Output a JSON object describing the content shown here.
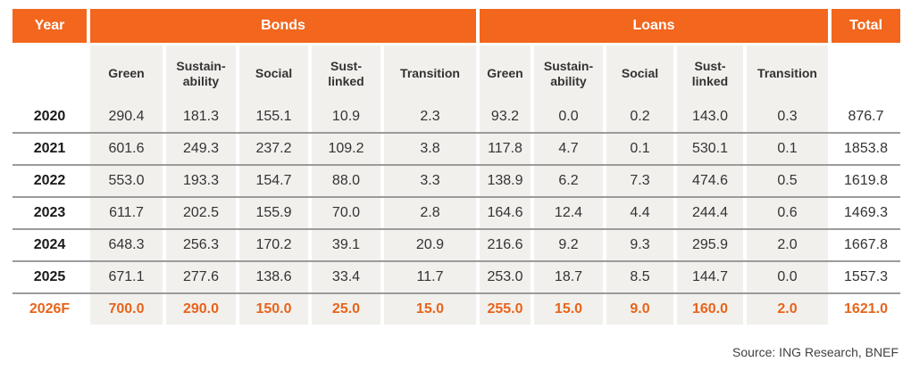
{
  "table": {
    "year_header": "Year",
    "groups": [
      {
        "label": "Bonds"
      },
      {
        "label": "Loans"
      }
    ],
    "total_header": "Total",
    "subheaders": [
      "Green",
      "Sustain-\nability",
      "Social",
      "Sust-\nlinked",
      "Transition",
      "Green",
      "Sustain-\nability",
      "Social",
      "Sust-\nlinked",
      "Transition"
    ],
    "rows": [
      {
        "year": "2020",
        "values": [
          "290.4",
          "181.3",
          "155.1",
          "10.9",
          "2.3",
          "93.2",
          "0.0",
          "0.2",
          "143.0",
          "0.3"
        ],
        "total": "876.7",
        "forecast": false
      },
      {
        "year": "2021",
        "values": [
          "601.6",
          "249.3",
          "237.2",
          "109.2",
          "3.8",
          "117.8",
          "4.7",
          "0.1",
          "530.1",
          "0.1"
        ],
        "total": "1853.8",
        "forecast": false
      },
      {
        "year": "2022",
        "values": [
          "553.0",
          "193.3",
          "154.7",
          "88.0",
          "3.3",
          "138.9",
          "6.2",
          "7.3",
          "474.6",
          "0.5"
        ],
        "total": "1619.8",
        "forecast": false
      },
      {
        "year": "2023",
        "values": [
          "611.7",
          "202.5",
          "155.9",
          "70.0",
          "2.8",
          "164.6",
          "12.4",
          "4.4",
          "244.4",
          "0.6"
        ],
        "total": "1469.3",
        "forecast": false
      },
      {
        "year": "2024",
        "values": [
          "648.3",
          "256.3",
          "170.2",
          "39.1",
          "20.9",
          "216.6",
          "9.2",
          "9.3",
          "295.9",
          "2.0"
        ],
        "total": "1667.8",
        "forecast": false
      },
      {
        "year": "2025",
        "values": [
          "671.1",
          "277.6",
          "138.6",
          "33.4",
          "11.7",
          "253.0",
          "18.7",
          "8.5",
          "144.7",
          "0.0"
        ],
        "total": "1557.3",
        "forecast": false
      },
      {
        "year": "2026F",
        "values": [
          "700.0",
          "290.0",
          "150.0",
          "25.0",
          "15.0",
          "255.0",
          "15.0",
          "9.0",
          "160.0",
          "2.0"
        ],
        "total": "1621.0",
        "forecast": true
      }
    ]
  },
  "source": "Source: ING Research, BNEF",
  "colors": {
    "header_orange": "#F2661D",
    "forecast_orange": "#E8641A",
    "stripe": "#F2F0ED",
    "separator": "#9B9B9B",
    "text": "#333333",
    "header_text": "#FFFFFF"
  },
  "chart_data": {
    "type": "table",
    "column_groups": [
      "Bonds",
      "Loans"
    ],
    "columns": [
      "Year",
      "Bonds Green",
      "Bonds Sustainability",
      "Bonds Social",
      "Bonds Sust-linked",
      "Bonds Transition",
      "Loans Green",
      "Loans Sustainability",
      "Loans Social",
      "Loans Sust-linked",
      "Loans Transition",
      "Total"
    ],
    "rows": [
      [
        "2020",
        290.4,
        181.3,
        155.1,
        10.9,
        2.3,
        93.2,
        0.0,
        0.2,
        143.0,
        0.3,
        876.7
      ],
      [
        "2021",
        601.6,
        249.3,
        237.2,
        109.2,
        3.8,
        117.8,
        4.7,
        0.1,
        530.1,
        0.1,
        1853.8
      ],
      [
        "2022",
        553.0,
        193.3,
        154.7,
        88.0,
        3.3,
        138.9,
        6.2,
        7.3,
        474.6,
        0.5,
        1619.8
      ],
      [
        "2023",
        611.7,
        202.5,
        155.9,
        70.0,
        2.8,
        164.6,
        12.4,
        4.4,
        244.4,
        0.6,
        1469.3
      ],
      [
        "2024",
        648.3,
        256.3,
        170.2,
        39.1,
        20.9,
        216.6,
        9.2,
        9.3,
        295.9,
        2.0,
        1667.8
      ],
      [
        "2025",
        671.1,
        277.6,
        138.6,
        33.4,
        11.7,
        253.0,
        18.7,
        8.5,
        144.7,
        0.0,
        1557.3
      ],
      [
        "2026F",
        700.0,
        290.0,
        150.0,
        25.0,
        15.0,
        255.0,
        15.0,
        9.0,
        160.0,
        2.0,
        1621.0
      ]
    ],
    "notes": "2026F row is a forecast, shown in orange; source caption: Source: ING Research, BNEF"
  }
}
